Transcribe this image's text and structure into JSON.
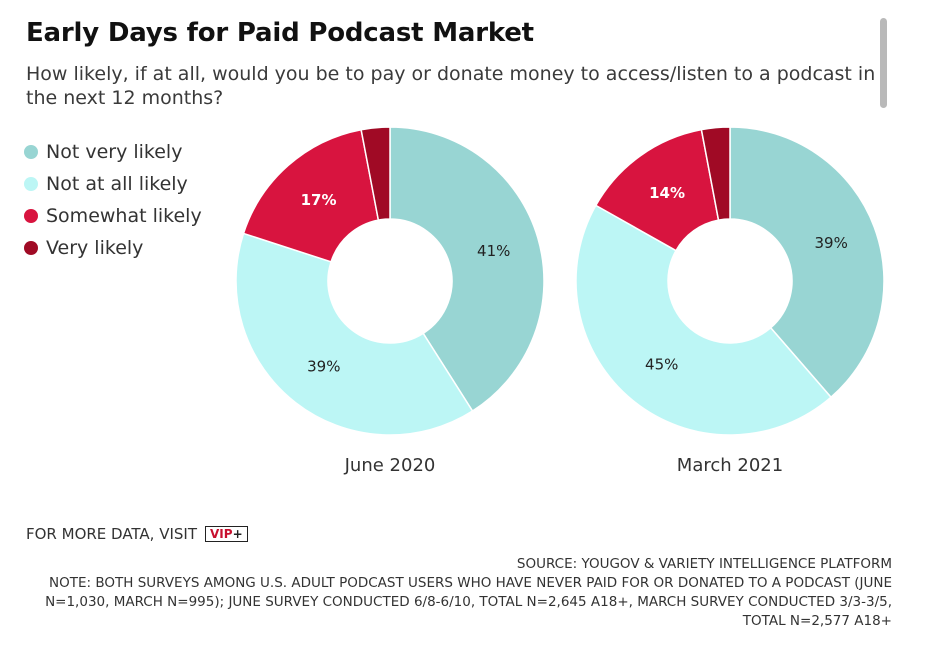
{
  "header": {
    "title": "Early Days for Paid Podcast Market",
    "subtitle": "How likely, if at all, would you be to pay or donate money to access/listen to a podcast in the next 12 months?"
  },
  "legend": [
    {
      "label": "Not very likely",
      "color": "#98d5d3"
    },
    {
      "label": "Not at all likely",
      "color": "#bcf6f5"
    },
    {
      "label": "Somewhat likely",
      "color": "#d8143f"
    },
    {
      "label": "Very likely",
      "color": "#a00a25"
    }
  ],
  "chart_data": {
    "type": "pie",
    "variant": "donut",
    "title": "Early Days for Paid Podcast Market",
    "legend_position": "left",
    "categories": [
      "Not very likely",
      "Not at all likely",
      "Somewhat likely",
      "Very likely"
    ],
    "colors": [
      "#98d5d3",
      "#bcf6f5",
      "#d8143f",
      "#a00a25"
    ],
    "charts": [
      {
        "name": "June 2020",
        "values": [
          41,
          39,
          17,
          3
        ],
        "labels": [
          "41%",
          "39%",
          "17%",
          ""
        ]
      },
      {
        "name": "March 2021",
        "values": [
          39,
          45,
          14,
          3
        ],
        "labels": [
          "39%",
          "45%",
          "14%",
          ""
        ]
      }
    ]
  },
  "footer": {
    "more_data_text": "FOR MORE DATA, VISIT",
    "vip_text": "VIP",
    "vip_plus": "+",
    "source": "SOURCE: YOUGOV & VARIETY INTELLIGENCE PLATFORM",
    "note": "NOTE: BOTH SURVEYS AMONG U.S. ADULT PODCAST USERS WHO HAVE NEVER PAID FOR OR DONATED TO A PODCAST (JUNE N=1,030, MARCH N=995); JUNE SURVEY CONDUCTED 6/8-6/10, TOTAL N=2,645 A18+, MARCH SURVEY CONDUCTED 3/3-3/5, TOTAL N=2,577 A18+"
  }
}
